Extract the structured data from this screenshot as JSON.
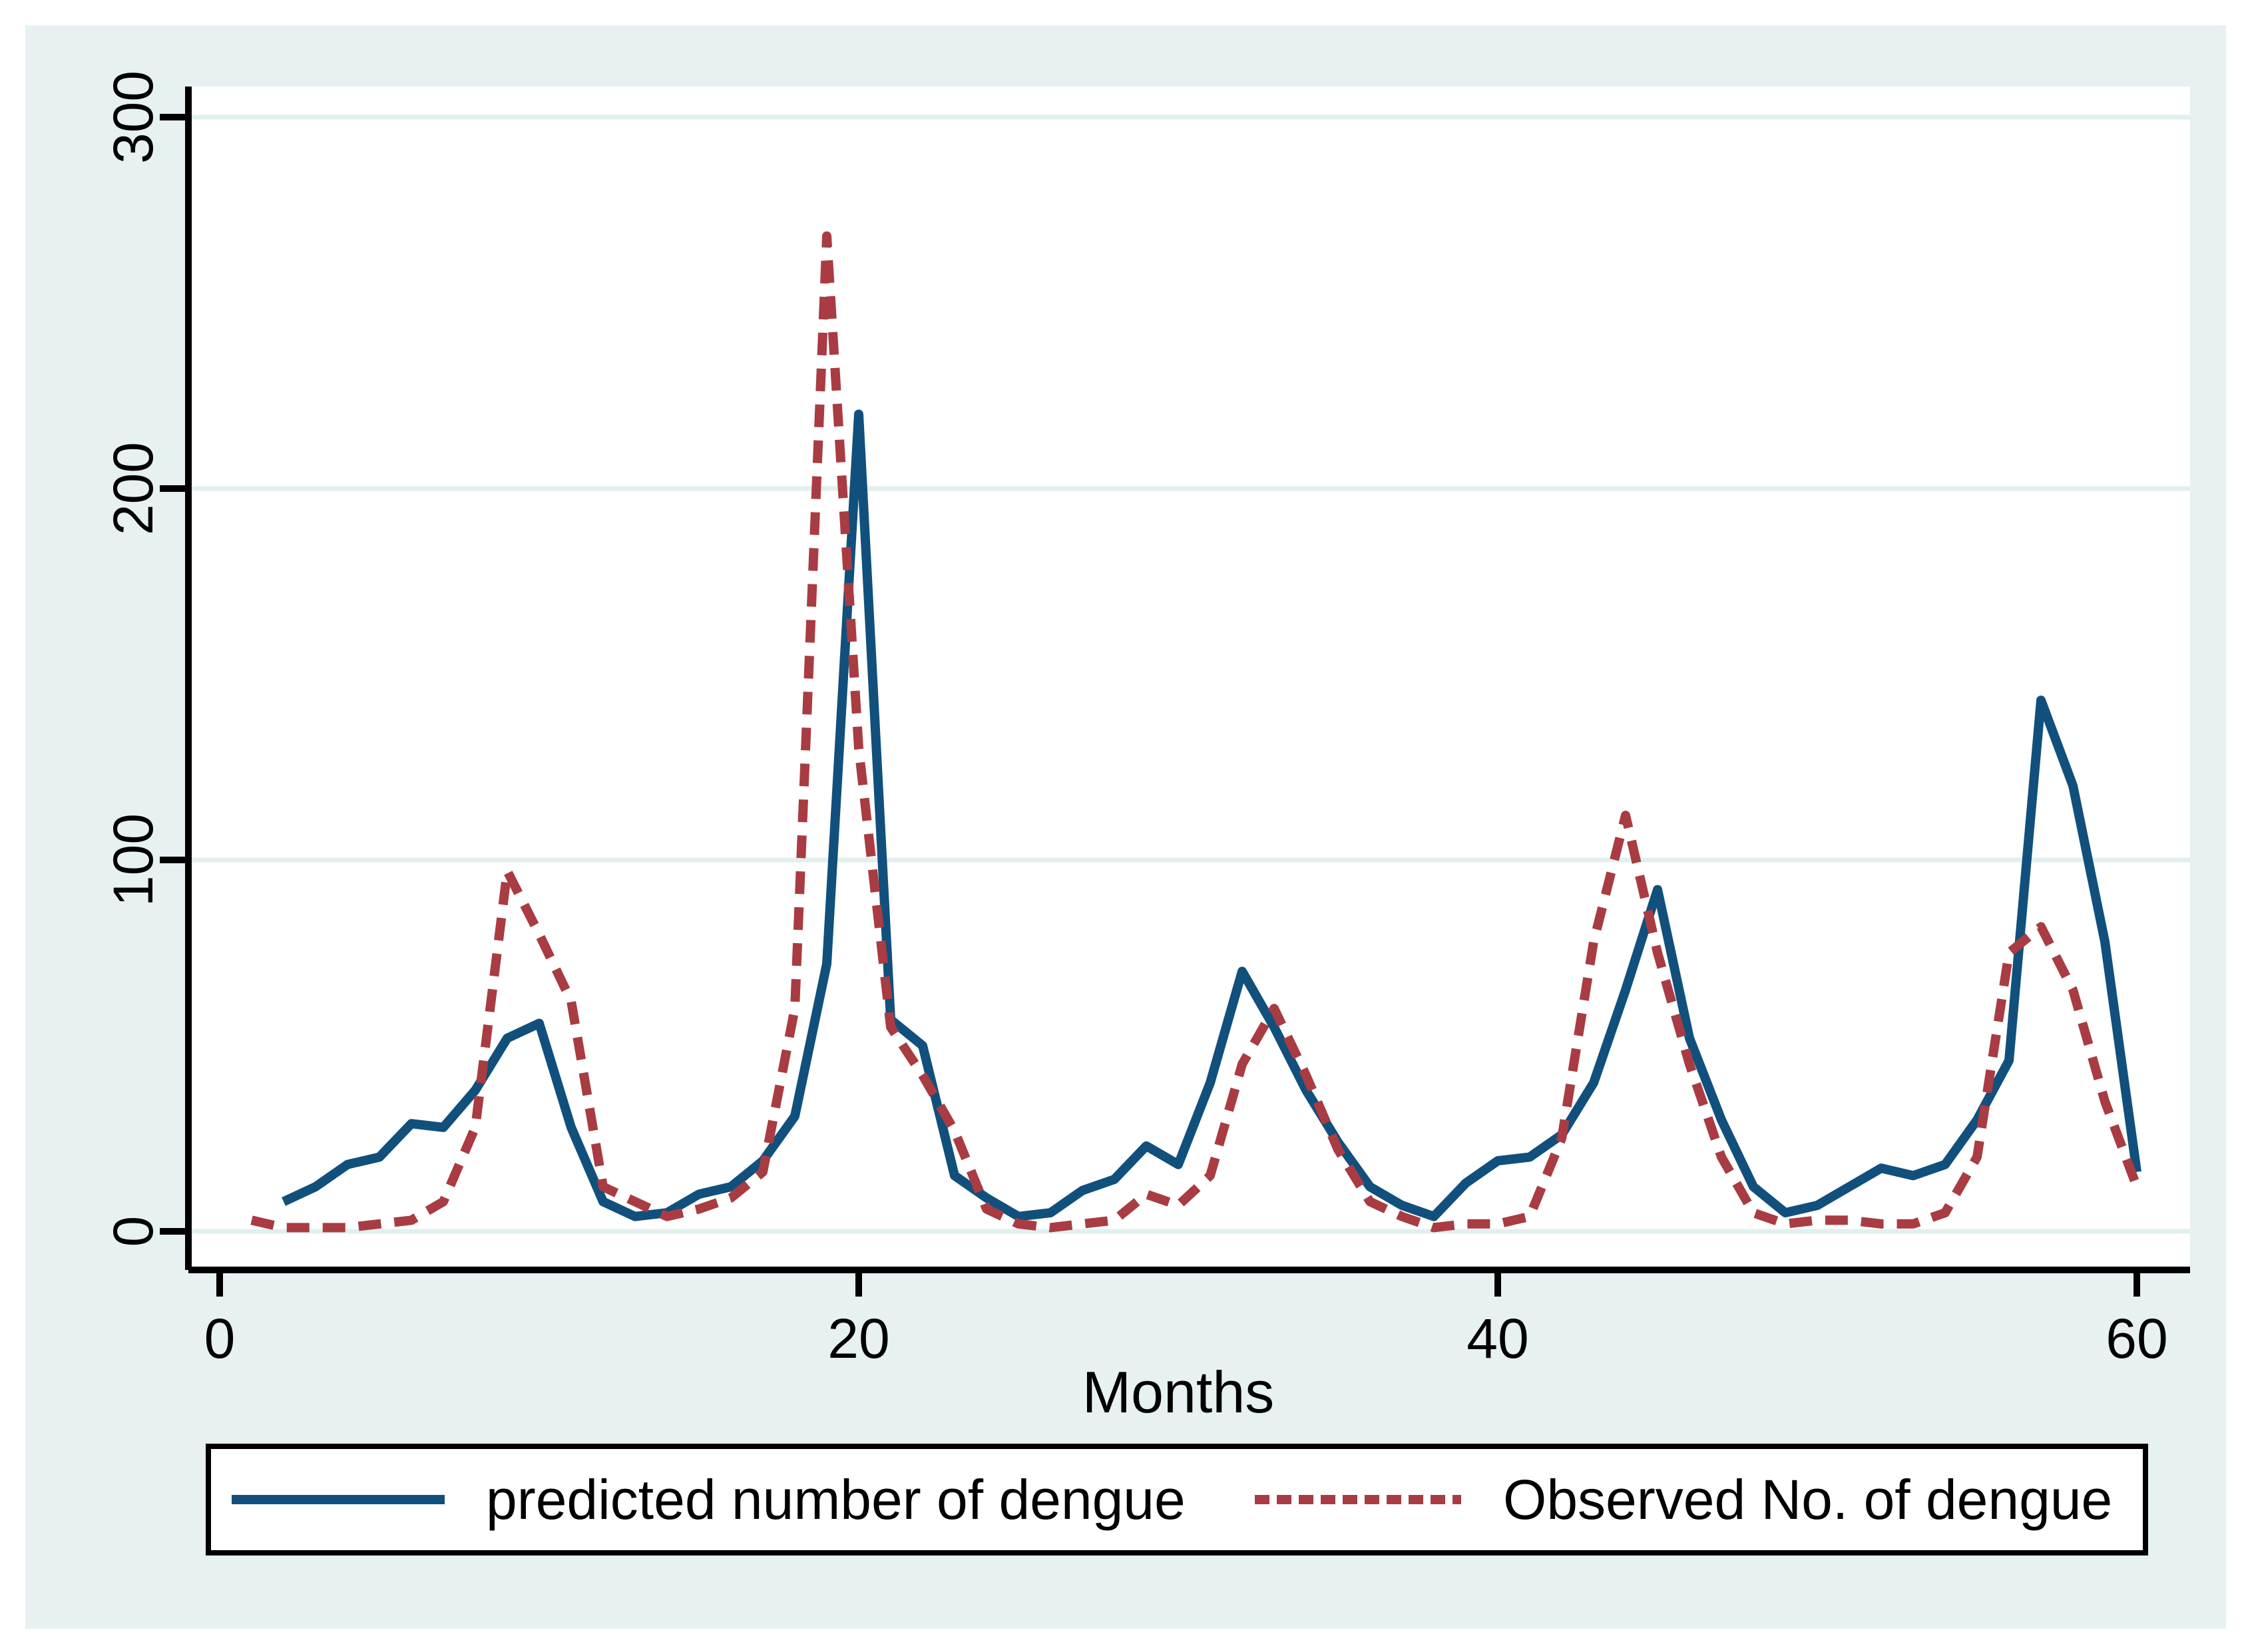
{
  "figure": {
    "page_background": "#ffffff",
    "graph_region_background": "#e7f1f1",
    "plot_background": "#ffffff",
    "gridline_color": "#e2efef",
    "axis_color": "#000000"
  },
  "chart_data": {
    "type": "line",
    "title": "",
    "xlabel": "Months",
    "ylabel": "",
    "x_ticks": [
      0,
      20,
      40,
      60
    ],
    "y_ticks": [
      0,
      100,
      200,
      300
    ],
    "xlim": [
      0,
      62
    ],
    "ylim": [
      0,
      310
    ],
    "grid": "horizontal-only",
    "legend_position": "bottom",
    "months_start": 1,
    "series": [
      {
        "name": "predicted number of dengue",
        "color": "#11507c",
        "style": "solid",
        "values": [
          null,
          8,
          12,
          18,
          20,
          29,
          28,
          38,
          52,
          56,
          28,
          8,
          4,
          5,
          10,
          12,
          19,
          31,
          72,
          220,
          57,
          50,
          15,
          9,
          4,
          5,
          11,
          14,
          23,
          18,
          40,
          70,
          55,
          38,
          24,
          12,
          7,
          4,
          13,
          19,
          20,
          26,
          40,
          65,
          92,
          52,
          30,
          12,
          5,
          7,
          12,
          17,
          15,
          18,
          30,
          46,
          143,
          120,
          78,
          16
        ]
      },
      {
        "name": "Observed No. of dengue",
        "color": "#a83c42",
        "style": "dashed",
        "values": [
          3,
          1,
          1,
          1,
          2,
          3,
          8,
          28,
          97,
          80,
          62,
          12,
          8,
          4,
          6,
          9,
          16,
          60,
          268,
          130,
          55,
          42,
          27,
          6,
          2,
          1,
          2,
          3,
          10,
          7,
          15,
          45,
          60,
          42,
          22,
          8,
          4,
          1,
          2,
          2,
          4,
          25,
          78,
          112,
          75,
          45,
          20,
          5,
          2,
          3,
          3,
          2,
          2,
          5,
          20,
          75,
          82,
          65,
          35,
          12
        ]
      }
    ]
  }
}
